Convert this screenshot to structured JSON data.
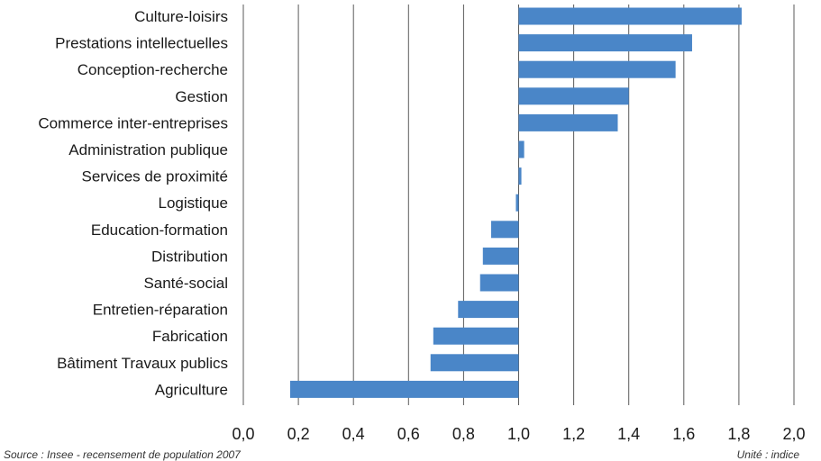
{
  "chart_data": {
    "type": "bar",
    "orientation": "horizontal",
    "baseline": 1.0,
    "xlim": [
      0.0,
      2.0
    ],
    "xticks": [
      "0,0",
      "0,2",
      "0,4",
      "0,6",
      "0,8",
      "1,0",
      "1,2",
      "1,4",
      "1,6",
      "1,8",
      "2,0"
    ],
    "grid": true,
    "bar_color": "#4a86c8",
    "categories": [
      "Culture-loisirs",
      "Prestations intellectuelles",
      "Conception-recherche",
      "Gestion",
      "Commerce inter-entreprises",
      "Administration publique",
      "Services de proximité",
      "Logistique",
      "Education-formation",
      "Distribution",
      "Santé-social",
      "Entretien-réparation",
      "Fabrication",
      "Bâtiment Travaux publics",
      "Agriculture"
    ],
    "values": [
      1.81,
      1.63,
      1.57,
      1.4,
      1.36,
      1.02,
      1.01,
      0.99,
      0.9,
      0.87,
      0.86,
      0.78,
      0.69,
      0.68,
      0.17
    ]
  },
  "footer": {
    "source": "Source : Insee - recensement de population 2007",
    "unit": "Unité : indice"
  }
}
